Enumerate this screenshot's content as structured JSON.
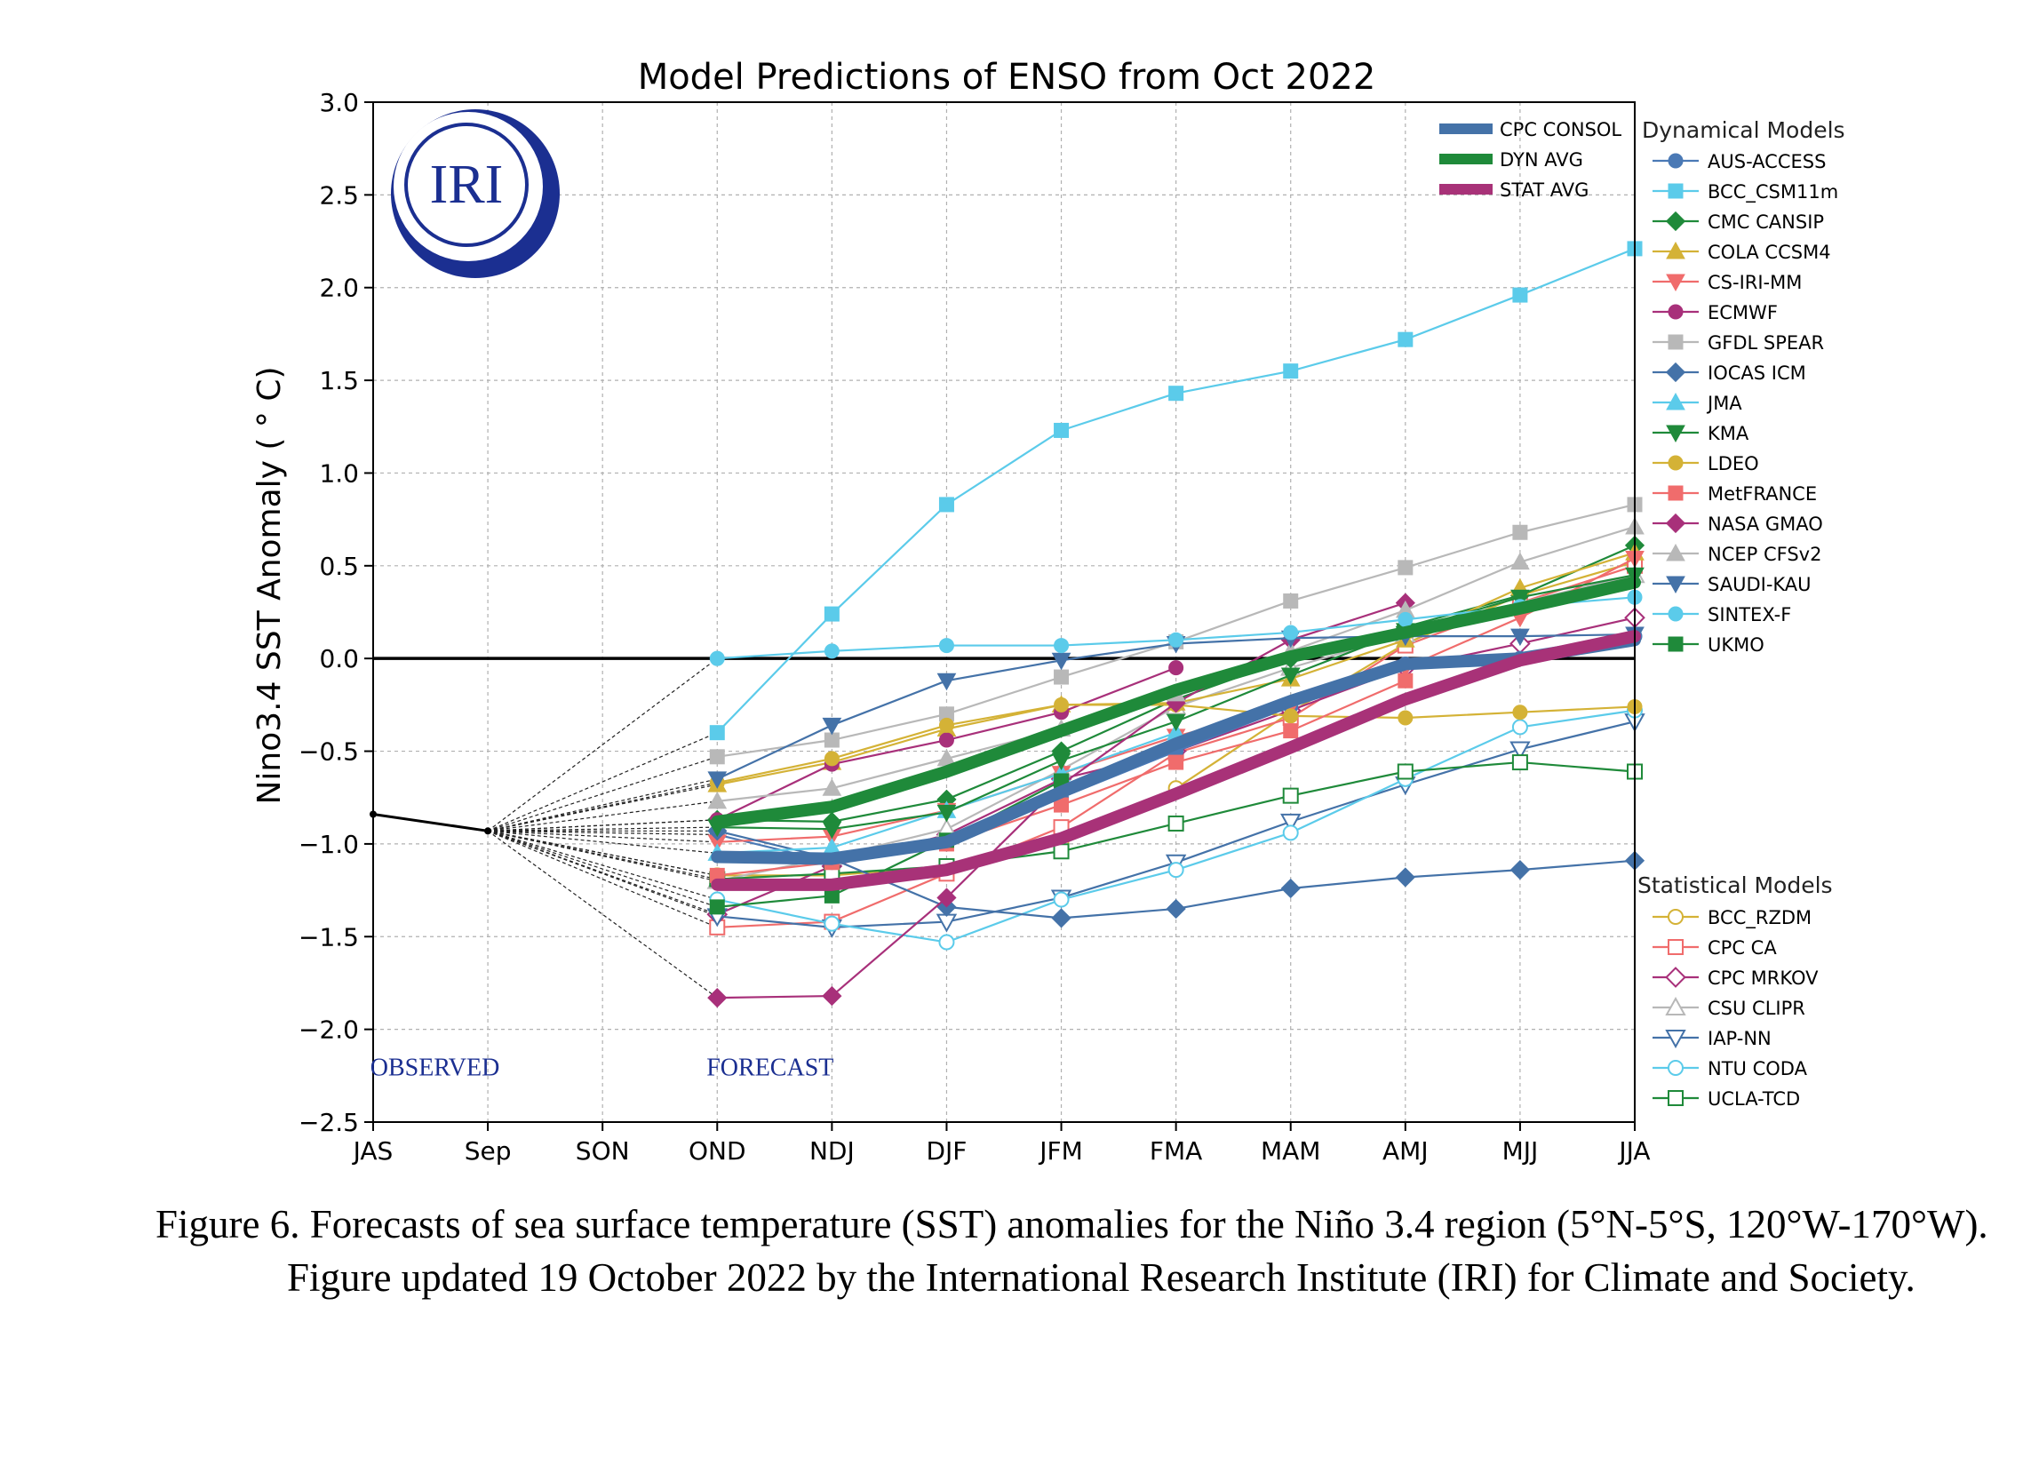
{
  "caption": "Figure 6. Forecasts of sea surface temperature (SST) anomalies for the Niño 3.4 region (5°N-5°S, 120°W-170°W). Figure updated 19 October 2022 by the International Research Institute (IRI) for Climate and Society.",
  "logo": {
    "text": "IRI",
    "color": "#1b2f91"
  },
  "chart_data": {
    "type": "line",
    "title": "Model Predictions of ENSO from Oct 2022",
    "ylabel": "Nino3.4 SST Anomaly ( ° C)",
    "xlabel": "",
    "categories": [
      "JAS",
      "Sep",
      "SON",
      "OND",
      "NDJ",
      "DJF",
      "JFM",
      "FMA",
      "MAM",
      "AMJ",
      "MJJ",
      "JJA"
    ],
    "ylim": [
      -2.5,
      3.0
    ],
    "yticks": [
      3.0,
      2.5,
      2.0,
      1.5,
      1.0,
      0.5,
      0.0,
      -0.5,
      -1.0,
      -1.5,
      -2.0,
      -2.5
    ],
    "ytick_labels": [
      "3.0",
      "2.5",
      "2.0",
      "1.5",
      "1.0",
      "0.5",
      "0.0",
      "−0.5",
      "−1.0",
      "−1.5",
      "−2.0",
      "−2.5"
    ],
    "grid": true,
    "annotations": [
      {
        "text": "OBSERVED",
        "at": "JAS-Sep, y=-2.2",
        "color": "#1b2f91"
      },
      {
        "text": "FORECAST",
        "at": "OND-NDJ, y=-2.2",
        "color": "#1b2f91"
      }
    ],
    "observed": {
      "x": [
        "JAS",
        "Sep"
      ],
      "values": [
        -0.84,
        -0.93
      ]
    },
    "forecast_start": {
      "x": "Sep",
      "value": -0.93
    },
    "dynamical_title": "Dynamical Models",
    "statistical_title": "Statistical Models",
    "consensus": [
      {
        "name": "CPC CONSOL",
        "color": "#4472a8",
        "values": [
          -1.07,
          -1.08,
          -0.99,
          -0.72,
          -0.46,
          -0.23,
          -0.03,
          0.0,
          0.1
        ]
      },
      {
        "name": "DYN AVG",
        "color": "#1f8a3a",
        "values": [
          -0.88,
          -0.8,
          -0.61,
          -0.39,
          -0.17,
          0.01,
          0.14,
          0.27,
          0.41
        ]
      },
      {
        "name": "STAT AVG",
        "color": "#a83278",
        "values": [
          -1.22,
          -1.22,
          -1.14,
          -0.97,
          -0.73,
          -0.48,
          -0.22,
          -0.01,
          0.12
        ]
      }
    ],
    "dynamical": [
      {
        "name": "AUS-ACCESS",
        "color": "#4a79b5",
        "marker": "circle",
        "filled": true,
        "values": [
          -0.95,
          -1.1,
          -1.0,
          -0.75,
          -0.5,
          -0.26,
          -0.03,
          0.0,
          0.12
        ]
      },
      {
        "name": "BCC_CSM11m",
        "color": "#5bcbea",
        "marker": "square",
        "filled": true,
        "values": [
          -0.4,
          0.24,
          0.83,
          1.23,
          1.43,
          1.55,
          1.72,
          1.96,
          2.21
        ]
      },
      {
        "name": "CMC CANSIP",
        "color": "#1f8a3a",
        "marker": "diamond",
        "filled": true,
        "values": [
          -0.87,
          -0.88,
          -0.76,
          -0.5,
          -0.22,
          0.0,
          0.17,
          0.34,
          0.61
        ]
      },
      {
        "name": "COLA CCSM4",
        "color": "#d4b236",
        "marker": "tri-up",
        "filled": true,
        "values": [
          -0.68,
          -0.56,
          -0.38,
          -0.25,
          -0.24,
          -0.11,
          0.1,
          0.38,
          0.57
        ]
      },
      {
        "name": "CS-IRI-MM",
        "color": "#f06c6c",
        "marker": "tri-down",
        "filled": true,
        "values": [
          -0.99,
          -0.96,
          -0.82,
          -0.62,
          -0.42,
          -0.26,
          -0.05,
          0.22,
          0.54
        ]
      },
      {
        "name": "ECMWF",
        "color": "#a8307a",
        "marker": "circle",
        "filled": true,
        "values": [
          -0.87,
          -0.57,
          -0.44,
          -0.29,
          -0.05
        ]
      },
      {
        "name": "GFDL SPEAR",
        "color": "#b8b8b8",
        "marker": "square",
        "filled": true,
        "values": [
          -0.53,
          -0.44,
          -0.3,
          -0.1,
          0.09,
          0.31,
          0.49,
          0.68,
          0.83
        ]
      },
      {
        "name": "IOCAS ICM",
        "color": "#4472a8",
        "marker": "diamond",
        "filled": true,
        "values": [
          -0.93,
          -1.08,
          -1.34,
          -1.4,
          -1.35,
          -1.24,
          -1.18,
          -1.14,
          -1.09
        ]
      },
      {
        "name": "JMA",
        "color": "#5bcbea",
        "marker": "tri-up",
        "filled": true,
        "values": [
          -1.05,
          -1.02,
          -0.82,
          -0.62,
          -0.4
        ]
      },
      {
        "name": "KMA",
        "color": "#1f8a3a",
        "marker": "tri-down",
        "filled": true,
        "values": [
          -0.91,
          -0.92,
          -0.83,
          -0.55,
          -0.34,
          -0.09,
          0.15,
          0.33,
          0.45
        ]
      },
      {
        "name": "LDEO",
        "color": "#d4b236",
        "marker": "circle",
        "filled": true,
        "values": [
          -0.67,
          -0.54,
          -0.36,
          -0.25,
          -0.25,
          -0.31,
          -0.32,
          -0.29,
          -0.26
        ]
      },
      {
        "name": "MetFRANCE",
        "color": "#f06c6c",
        "marker": "square",
        "filled": true,
        "values": [
          -1.17,
          -1.1,
          -1.0,
          -0.79,
          -0.56,
          -0.39,
          -0.12
        ]
      },
      {
        "name": "NASA GMAO",
        "color": "#a8307a",
        "marker": "diamond",
        "filled": true,
        "values": [
          -1.83,
          -1.82,
          -1.29,
          -0.68,
          -0.24,
          0.1,
          0.3
        ]
      },
      {
        "name": "NCEP CFSv2",
        "color": "#b8b8b8",
        "marker": "tri-up",
        "filled": true,
        "values": [
          -0.77,
          -0.7,
          -0.54,
          -0.38,
          -0.19,
          0.04,
          0.26,
          0.52,
          0.71
        ]
      },
      {
        "name": "SAUDI-KAU",
        "color": "#4472a8",
        "marker": "tri-down",
        "filled": true,
        "values": [
          -0.65,
          -0.36,
          -0.12,
          -0.01,
          0.08,
          0.11,
          0.12,
          0.12,
          0.13
        ]
      },
      {
        "name": "SINTEX-F",
        "color": "#5bcbea",
        "marker": "circle",
        "filled": true,
        "values": [
          0.0,
          0.04,
          0.07,
          0.07,
          0.1,
          0.14,
          0.21,
          0.28,
          0.33
        ]
      },
      {
        "name": "UKMO",
        "color": "#1f8a3a",
        "marker": "square",
        "filled": true,
        "values": [
          -1.34,
          -1.28,
          -0.98,
          -0.66
        ]
      }
    ],
    "statistical": [
      {
        "name": "BCC_RZDM",
        "color": "#d4b236",
        "marker": "circle",
        "filled": false,
        "values": [
          -1.17,
          -1.17,
          -1.12,
          -1.0,
          -0.7,
          -0.29,
          0.08,
          0.34,
          0.52
        ]
      },
      {
        "name": "CPC CA",
        "color": "#f06c6c",
        "marker": "square",
        "filled": false,
        "values": [
          -1.45,
          -1.42,
          -1.16,
          -0.91,
          -0.51,
          -0.32,
          0.07,
          0.3,
          0.5
        ]
      },
      {
        "name": "CPC MRKOV",
        "color": "#a8307a",
        "marker": "diamond",
        "filled": false,
        "values": [
          -1.38,
          -1.12,
          -0.95,
          -0.65,
          -0.5,
          -0.28,
          -0.05,
          0.08,
          0.22
        ]
      },
      {
        "name": "CSU CLIPR",
        "color": "#b8b8b8",
        "marker": "tri-up",
        "filled": false,
        "values": [
          -1.2,
          -1.07,
          -0.92,
          -0.6,
          -0.26,
          -0.05,
          0.13,
          0.3,
          0.45
        ]
      },
      {
        "name": "IAP-NN",
        "color": "#4472a8",
        "marker": "tri-down",
        "filled": false,
        "values": [
          -1.39,
          -1.45,
          -1.42,
          -1.29,
          -1.1,
          -0.88,
          -0.68,
          -0.49,
          -0.34
        ]
      },
      {
        "name": "NTU CODA",
        "color": "#5bcbea",
        "marker": "circle",
        "filled": false,
        "values": [
          -1.3,
          -1.43,
          -1.53,
          -1.3,
          -1.14,
          -0.94,
          -0.65,
          -0.37,
          -0.28
        ]
      },
      {
        "name": "UCLA-TCD",
        "color": "#1f8a3a",
        "marker": "square",
        "filled": false,
        "values": [
          -1.19,
          -1.16,
          -1.12,
          -1.04,
          -0.89,
          -0.74,
          -0.61,
          -0.56,
          -0.61
        ]
      }
    ]
  }
}
